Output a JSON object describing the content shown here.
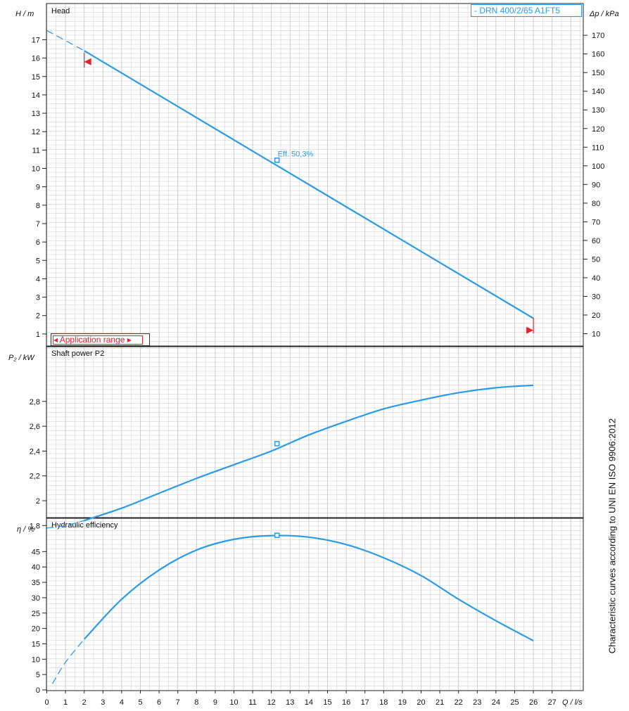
{
  "chart_data": [
    {
      "type": "line",
      "title": "Head",
      "ylabel": "H / m",
      "ylabel_right": "Δp / kPa",
      "model": "- DRN 400/2/65 A1FT5",
      "legend": "Application range",
      "annotation": "Eff.  50,3%",
      "xlim": [
        0,
        29
      ],
      "ylim": [
        0,
        18.2
      ],
      "y_ticks": [
        1,
        2,
        3,
        4,
        5,
        6,
        7,
        8,
        9,
        10,
        11,
        12,
        13,
        14,
        15,
        16,
        17
      ],
      "y_right_ticks": [
        10,
        20,
        30,
        40,
        50,
        60,
        70,
        80,
        90,
        100,
        110,
        120,
        130,
        140,
        150,
        160,
        170
      ],
      "series": [
        {
          "style": "solid",
          "x": [
            2,
            26
          ],
          "y": [
            16.4,
            1.85
          ]
        },
        {
          "style": "dashed",
          "x": [
            0,
            2
          ],
          "y": [
            17.5,
            16.4
          ]
        }
      ],
      "duty_point": {
        "x": 12.3,
        "y": 10.45
      },
      "range_markers": [
        {
          "x": 2,
          "y": 15.8
        },
        {
          "x": 26,
          "y": 1.2
        }
      ]
    },
    {
      "type": "line",
      "title": "Shaft power P2",
      "ylabel": "P₂ / kW",
      "xlim": [
        0,
        29
      ],
      "ylim": [
        1.66,
        2.99
      ],
      "y_ticks": [
        "1,8",
        "2",
        "2,2",
        "2,4",
        "2,6",
        "2,8"
      ],
      "series": [
        {
          "style": "solid",
          "x": [
            2,
            4,
            6,
            8,
            10,
            12,
            14,
            16,
            18,
            20,
            22,
            24,
            26
          ],
          "y": [
            1.84,
            1.94,
            2.06,
            2.18,
            2.29,
            2.4,
            2.53,
            2.64,
            2.74,
            2.81,
            2.87,
            2.91,
            2.93
          ]
        },
        {
          "style": "dashed",
          "x": [
            0,
            1,
            2
          ],
          "y": [
            1.78,
            1.8,
            1.84
          ]
        }
      ],
      "duty_point": {
        "x": 12.3,
        "y": 2.46
      }
    },
    {
      "type": "line",
      "title": "Hydraulic efficiency",
      "ylabel": "η / %",
      "xlabel": "Q / l/s",
      "xlim": [
        0,
        29
      ],
      "ylim": [
        0,
        53
      ],
      "x_ticks": [
        "0",
        "1",
        "2",
        "3",
        "4",
        "5",
        "6",
        "7",
        "8",
        "9",
        "10",
        "11",
        "12",
        "13",
        "14",
        "15",
        "16",
        "17",
        "18",
        "19",
        "20",
        "21",
        "22",
        "23",
        "24",
        "25",
        "26",
        "27"
      ],
      "y_ticks": [
        0,
        5,
        10,
        15,
        20,
        25,
        30,
        35,
        40,
        45
      ],
      "series": [
        {
          "style": "solid",
          "x": [
            2,
            4,
            6,
            8,
            10,
            12,
            14,
            16,
            18,
            20,
            22,
            24,
            26
          ],
          "y": [
            16.5,
            29.5,
            39,
            45.5,
            49,
            50.2,
            49.7,
            47.3,
            43,
            37.2,
            29.5,
            22.5,
            16
          ]
        },
        {
          "style": "dashed",
          "x": [
            0.3,
            1,
            2
          ],
          "y": [
            2,
            9,
            16.5
          ]
        }
      ],
      "duty_point": {
        "x": 12.3,
        "y": 50.3
      }
    }
  ],
  "side_note": "Characteristic curves according to UNI EN ISO 9906:2012",
  "colors": {
    "curve": "#2b9be6",
    "marker": "#e5212a",
    "grid": "#c8c8c8"
  }
}
